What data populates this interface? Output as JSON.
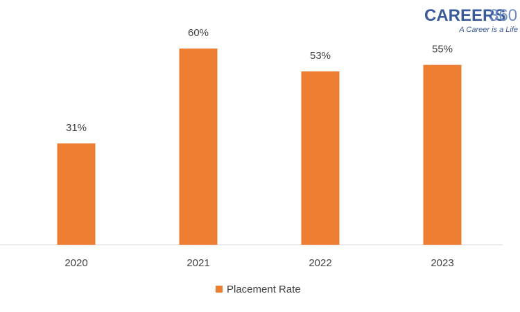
{
  "chart_data": {
    "type": "bar",
    "categories": [
      "2020",
      "2021",
      "2022",
      "2023"
    ],
    "series": [
      {
        "name": "Placement Rate",
        "color": "#ed7d31",
        "values": [
          31,
          60,
          53,
          55
        ],
        "value_labels": [
          "31%",
          "60%",
          "53%",
          "55%"
        ]
      }
    ],
    "legend": "bottom"
  },
  "logo": {
    "text": "CAREERS",
    "number": "360",
    "tagline": "A Career is a Life"
  }
}
